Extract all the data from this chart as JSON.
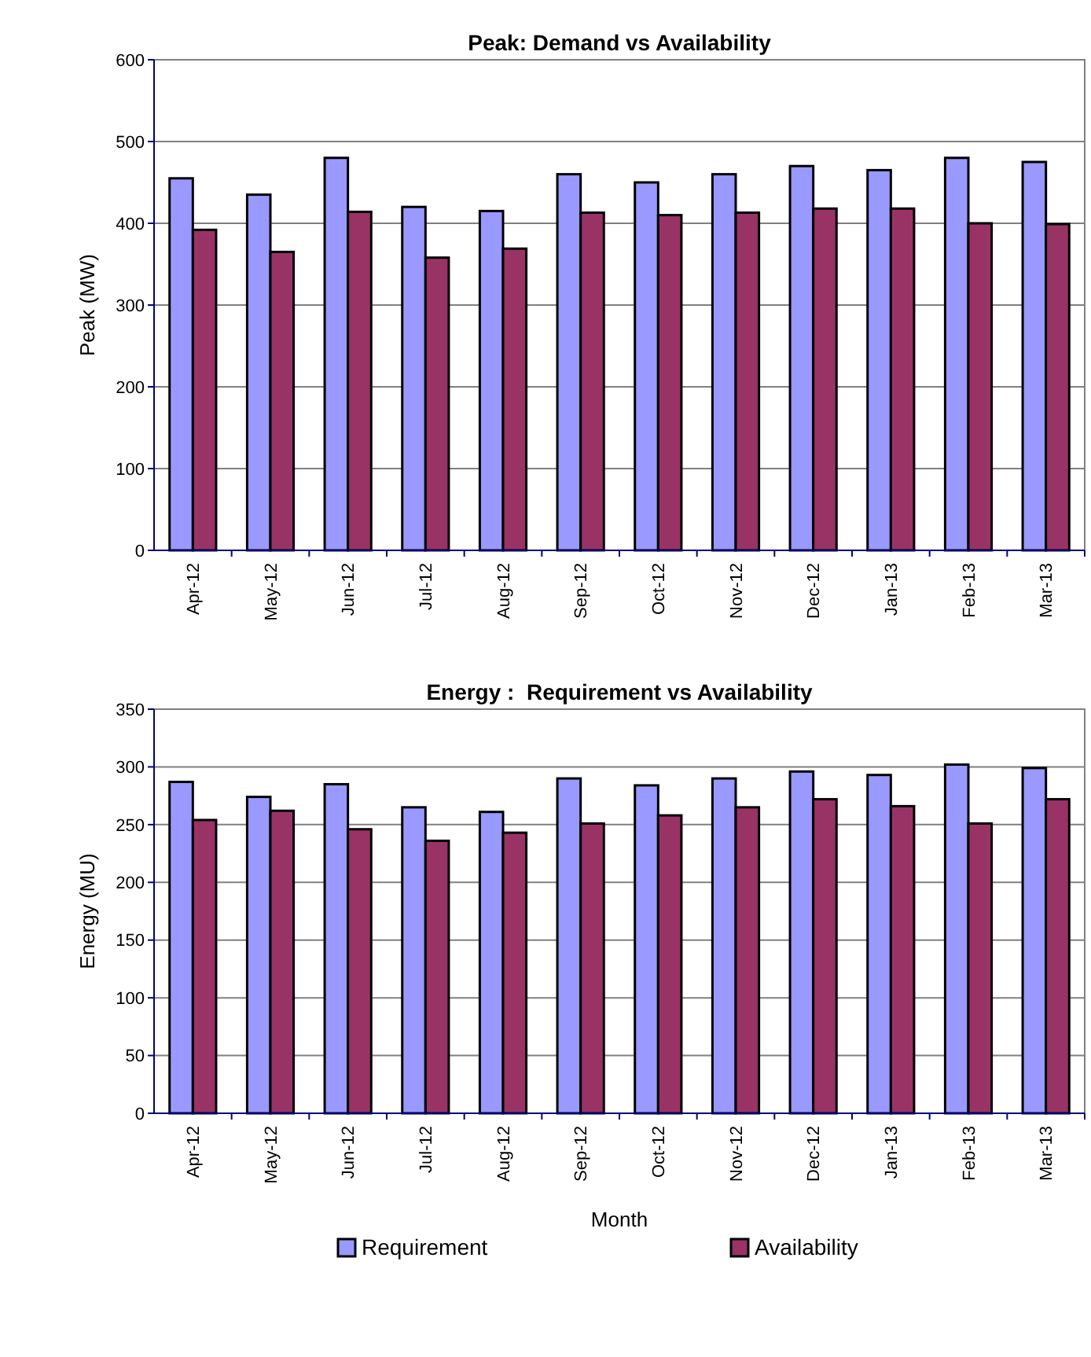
{
  "chart_data": [
    {
      "type": "bar",
      "title": "Peak: Demand vs Availability",
      "ylabel": "Peak (MW)",
      "categories": [
        "Apr-12",
        "May-12",
        "Jun-12",
        "Jul-12",
        "Aug-12",
        "Sep-12",
        "Oct-12",
        "Nov-12",
        "Dec-12",
        "Jan-13",
        "Feb-13",
        "Mar-13"
      ],
      "series": [
        {
          "color": "#9999ff",
          "values": [
            455,
            435,
            480,
            420,
            415,
            460,
            450,
            460,
            470,
            465,
            480,
            475
          ]
        },
        {
          "color": "#993366",
          "values": [
            392,
            365,
            414,
            358,
            369,
            413,
            410,
            413,
            418,
            418,
            400,
            399
          ]
        }
      ],
      "ylim": [
        0,
        600
      ],
      "yticks": [
        0,
        100,
        200,
        300,
        400,
        500,
        600
      ],
      "grid": "y",
      "legend": false
    },
    {
      "type": "bar",
      "title": "Energy :  Requirement vs Availability",
      "ylabel": "Energy (MU)",
      "xlabel": "Month",
      "categories": [
        "Apr-12",
        "May-12",
        "Jun-12",
        "Jul-12",
        "Aug-12",
        "Sep-12",
        "Oct-12",
        "Nov-12",
        "Dec-12",
        "Jan-13",
        "Feb-13",
        "Mar-13"
      ],
      "series": [
        {
          "name": "Requirement",
          "color": "#9999ff",
          "values": [
            287,
            274,
            285,
            265,
            261,
            290,
            284,
            290,
            296,
            293,
            302,
            299
          ]
        },
        {
          "name": "Availability",
          "color": "#993366",
          "values": [
            254,
            262,
            246,
            236,
            243,
            251,
            258,
            265,
            272,
            266,
            251,
            272
          ]
        }
      ],
      "ylim": [
        0,
        350
      ],
      "yticks": [
        0,
        50,
        100,
        150,
        200,
        250,
        300,
        350
      ],
      "grid": "y",
      "legend": "bottom"
    }
  ]
}
